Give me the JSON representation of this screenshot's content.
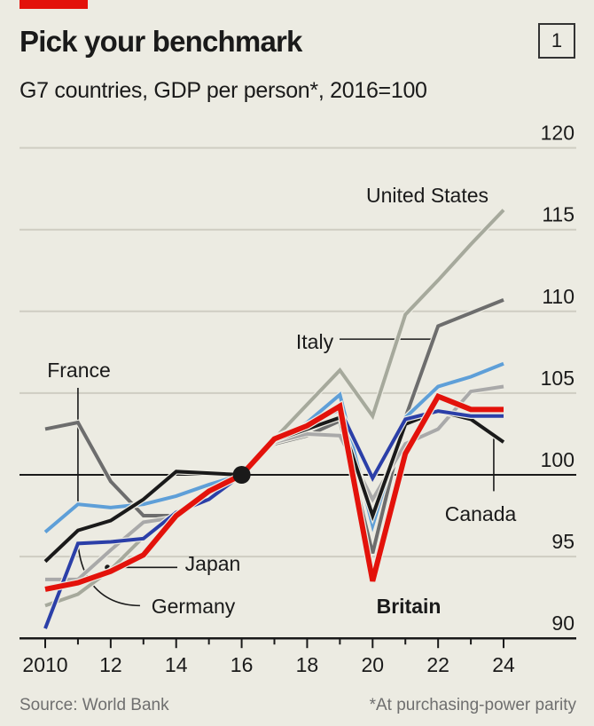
{
  "header": {
    "title": "Pick your benchmark",
    "subtitle": "G7 countries, GDP per person*, 2016=100",
    "chart_number": "1",
    "accent_color": "#e3120b"
  },
  "footer": {
    "source": "Source: World Bank",
    "note": "*At purchasing-power parity"
  },
  "chart_data": {
    "type": "line",
    "title": "Pick your benchmark",
    "subtitle": "G7 countries, GDP per person*, 2016=100",
    "xlabel": "",
    "ylabel": "",
    "x": [
      2010,
      2011,
      2012,
      2013,
      2014,
      2015,
      2016,
      2017,
      2018,
      2019,
      2020,
      2021,
      2022,
      2023,
      2024
    ],
    "x_ticks": [
      2010,
      2012,
      2014,
      2016,
      2018,
      2020,
      2022,
      2024
    ],
    "x_tick_labels": [
      "2010",
      "12",
      "14",
      "16",
      "18",
      "20",
      "22",
      "24"
    ],
    "xlim": [
      2010,
      2025.3
    ],
    "y_ticks": [
      90,
      95,
      100,
      105,
      110,
      115,
      120
    ],
    "y_tick_labels": [
      "90",
      "95",
      "100",
      "105",
      "110",
      "115",
      "120"
    ],
    "ylim": [
      90,
      120
    ],
    "y_axis_side": "right",
    "grid": true,
    "baseline": 100,
    "highlight_point": {
      "x": 2016,
      "y": 100
    },
    "series": [
      {
        "name": "United States",
        "color": "#a6a99c",
        "values": [
          92.0,
          92.7,
          94.2,
          96.2,
          97.6,
          98.9,
          100,
          102.2,
          104.3,
          106.4,
          103.6,
          109.8,
          111.9,
          114.1,
          116.2
        ]
      },
      {
        "name": "Italy",
        "color": "#6d6d6d",
        "values": [
          102.8,
          103.2,
          99.6,
          97.5,
          97.5,
          98.8,
          100,
          101.9,
          102.4,
          103.3,
          95.2,
          103.5,
          109.1,
          109.9,
          110.7
        ]
      },
      {
        "name": "Japan",
        "color": "#a9a9a9",
        "values": [
          93.6,
          93.6,
          95.4,
          97.1,
          97.4,
          98.8,
          100,
          102.0,
          102.5,
          102.4,
          98.5,
          101.9,
          102.8,
          105.1,
          105.4
        ]
      },
      {
        "name": "France",
        "color": "#5e9fd8",
        "values": [
          96.5,
          98.2,
          98.0,
          98.2,
          98.7,
          99.4,
          100,
          102.1,
          103.2,
          104.9,
          96.9,
          103.5,
          105.4,
          106.0,
          106.8
        ]
      },
      {
        "name": "Canada",
        "color": "#1a1a1a",
        "values": [
          94.7,
          96.6,
          97.2,
          98.5,
          100.2,
          100.1,
          100,
          102.1,
          102.8,
          103.5,
          97.5,
          103.1,
          103.9,
          103.4,
          102.0
        ]
      },
      {
        "name": "Germany",
        "color": "#2b3fa8",
        "values": [
          90.6,
          95.8,
          95.9,
          96.1,
          97.7,
          98.5,
          100,
          102.3,
          103.1,
          104.0,
          99.8,
          103.4,
          103.9,
          103.6,
          103.6
        ]
      },
      {
        "name": "Britain",
        "color": "#e3120b",
        "values": [
          93.0,
          93.4,
          94.1,
          95.1,
          97.5,
          99.0,
          100,
          102.2,
          103.0,
          104.2,
          93.5,
          101.3,
          104.8,
          104.0,
          104.0
        ]
      }
    ],
    "annotations": [
      {
        "label": "United States",
        "series": "United States",
        "bold": false
      },
      {
        "label": "Italy",
        "series": "Italy",
        "bold": false
      },
      {
        "label": "France",
        "series": "France",
        "bold": false
      },
      {
        "label": "Japan",
        "series": "Japan",
        "bold": false
      },
      {
        "label": "Germany",
        "series": "Germany",
        "bold": false
      },
      {
        "label": "Canada",
        "series": "Canada",
        "bold": false
      },
      {
        "label": "Britain",
        "series": "Britain",
        "bold": true
      }
    ]
  }
}
